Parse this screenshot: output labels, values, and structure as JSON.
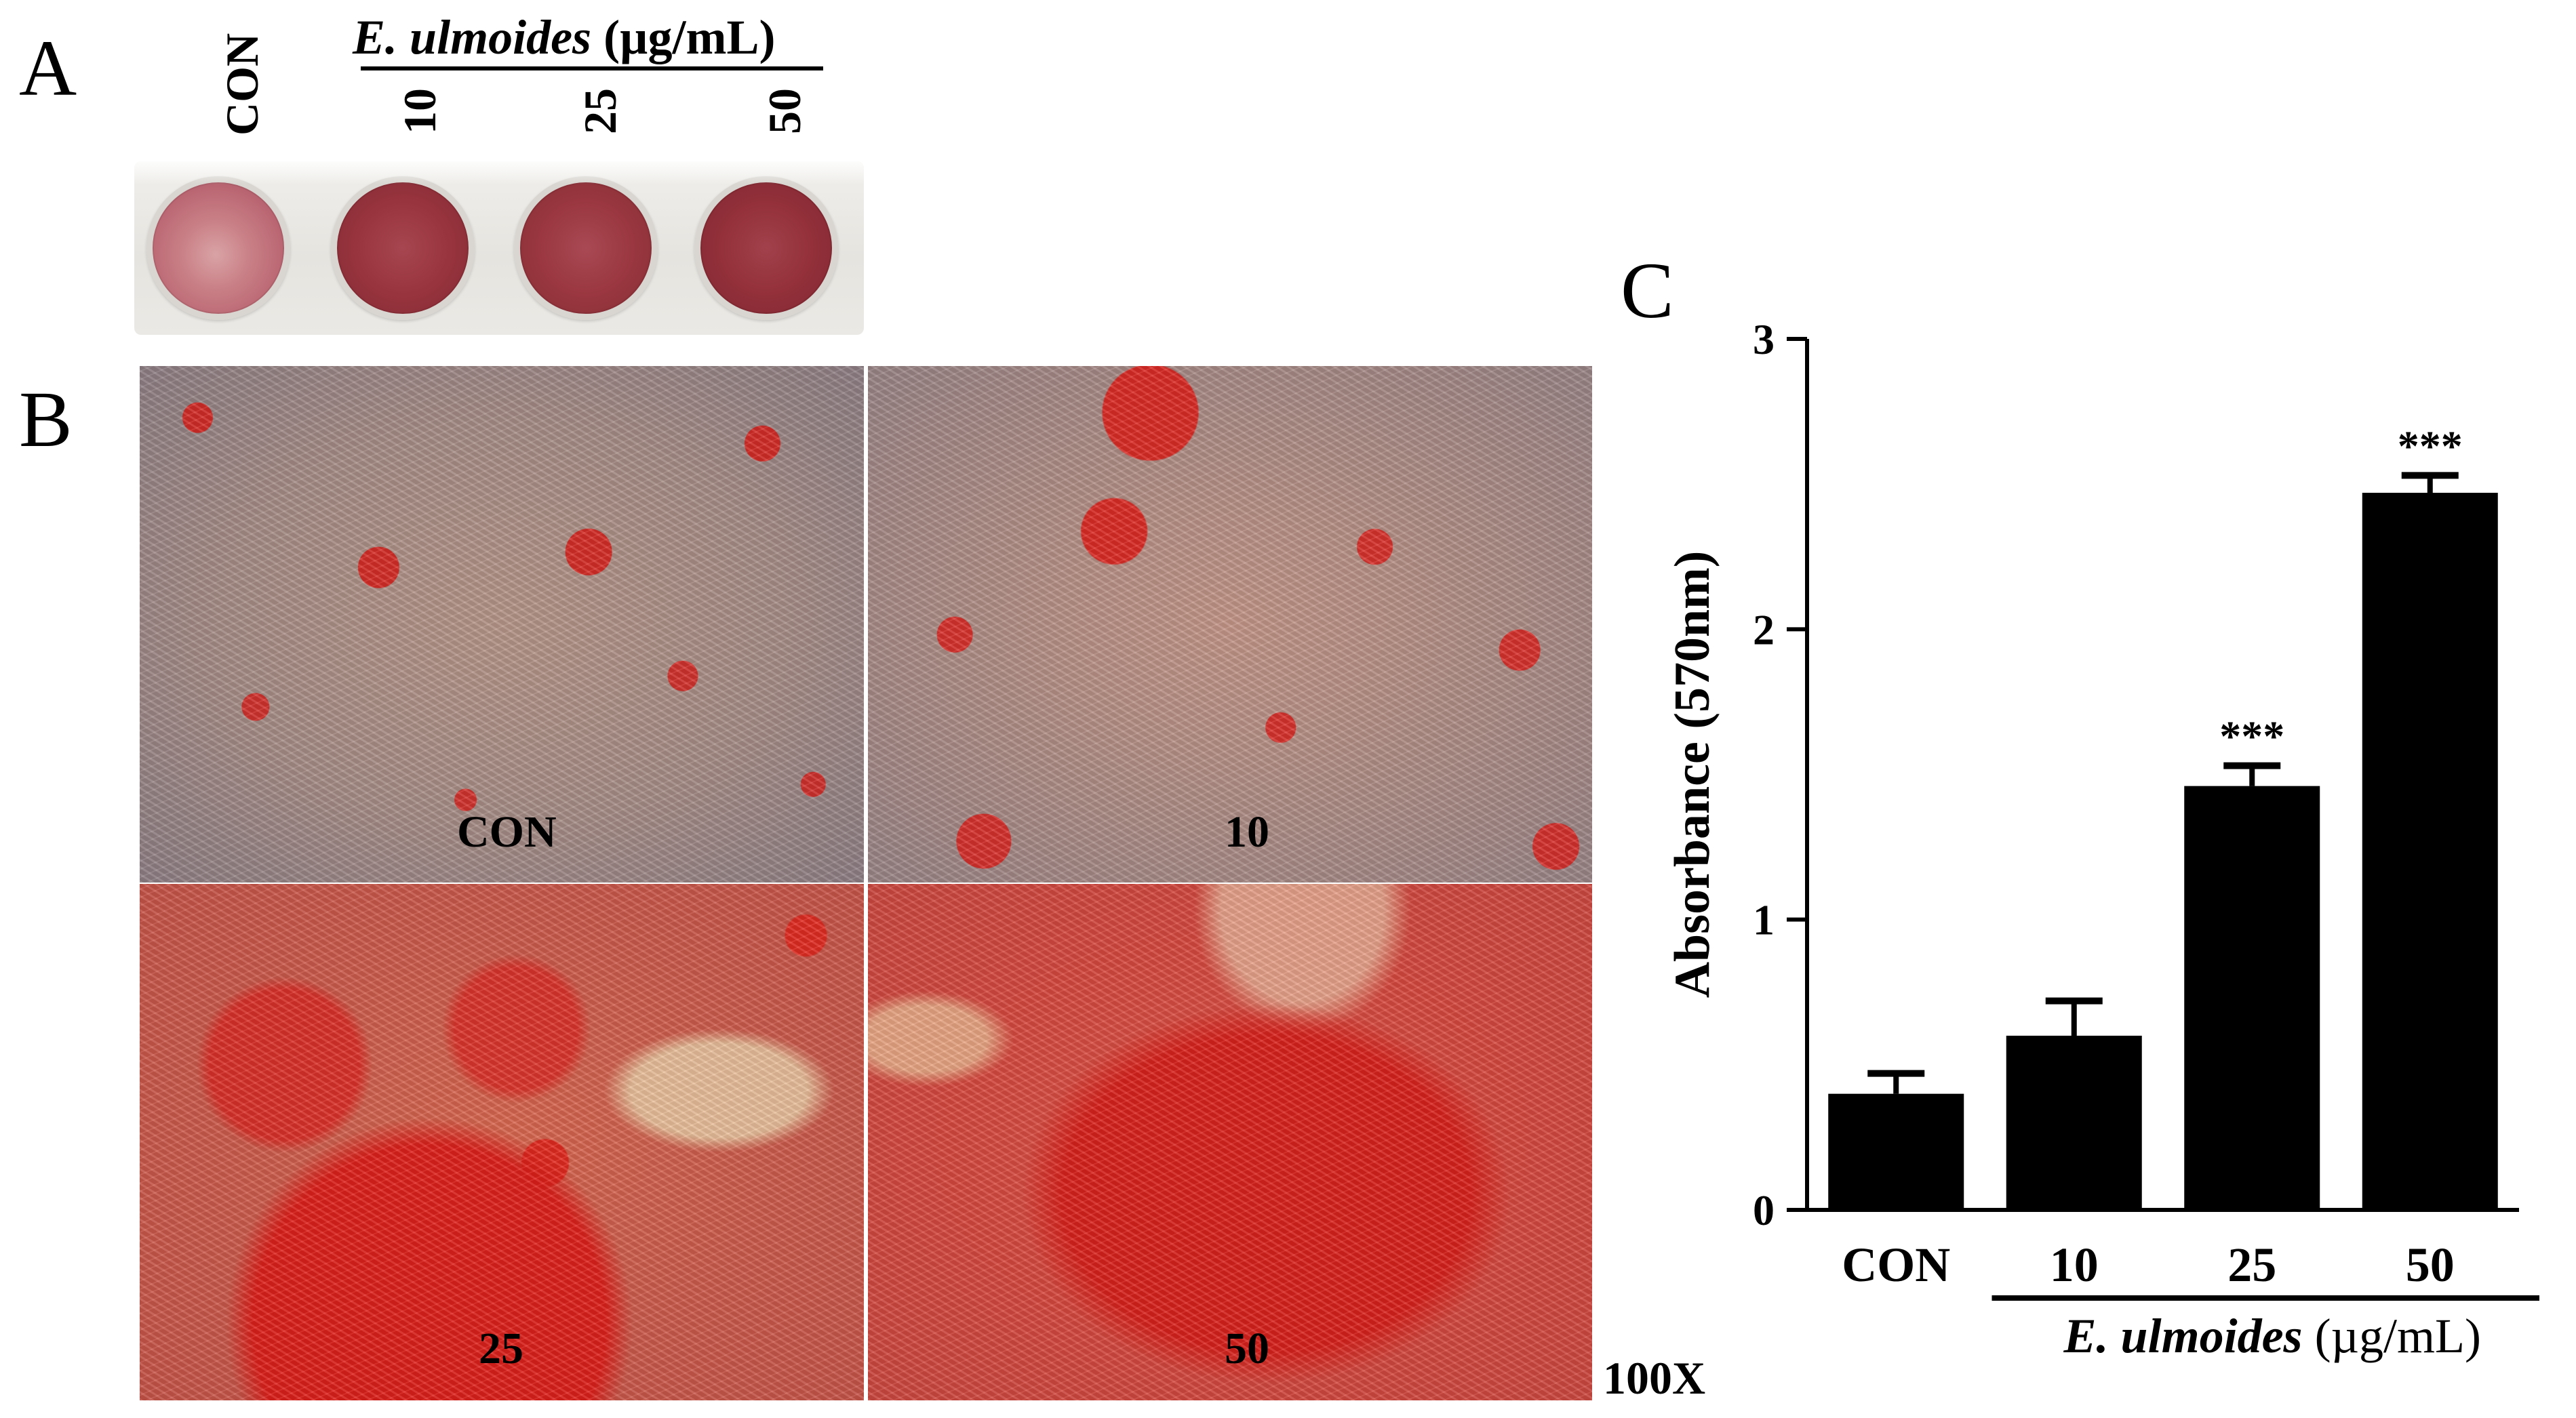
{
  "panels": {
    "a": "A",
    "b": "B",
    "c": "C"
  },
  "panel_a": {
    "header_species": "E. ulmoides",
    "header_unit": " (µg/mL)",
    "lane_labels": [
      "CON",
      "10",
      "25",
      "50"
    ]
  },
  "panel_b": {
    "tiles": [
      "CON",
      "10",
      "25",
      "50"
    ],
    "magnification": "100X"
  },
  "chart_data": {
    "type": "bar",
    "categories": [
      "CON",
      "10",
      "25",
      "50"
    ],
    "values": [
      0.4,
      0.6,
      1.46,
      2.47
    ],
    "errors": [
      0.07,
      0.12,
      0.07,
      0.06
    ],
    "significance": [
      "",
      "",
      "***",
      "***"
    ],
    "title": "",
    "ylabel": "Absorbance (570nm)",
    "xgroup_species": "E. ulmoides",
    "xgroup_unit": " (µg/mL)",
    "ylim": [
      0,
      3
    ],
    "yticks": [
      0,
      1,
      2,
      3
    ],
    "grid": false,
    "bar_color": "#000000"
  }
}
